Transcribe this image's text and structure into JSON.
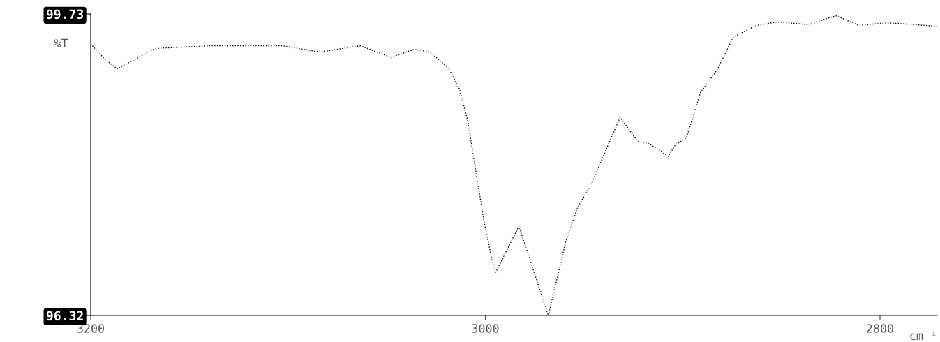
{
  "chart_data": {
    "type": "line",
    "ylabel": "%T",
    "xlabel": "cm⁻¹",
    "xlim": [
      3200,
      2771
    ],
    "xticks": [
      3200,
      3000,
      2800
    ],
    "ylim": [
      96.32,
      99.73
    ],
    "yticks": [
      96.32,
      99.73
    ],
    "grid": false,
    "marker": "none",
    "line_style": "dotted",
    "series": [
      {
        "color": "#000000",
        "x": [
          3200,
          3192.9,
          3186.5,
          3167.4,
          3139.5,
          3102.7,
          3083.9,
          3063.4,
          3047.8,
          3036.1,
          3028.0,
          3018.4,
          3013.1,
          3008.8,
          3004.9,
          3000.7,
          2996.5,
          2994.7,
          2983.0,
          2968.1,
          2959.3,
          2953.3,
          2946.2,
          2939.1,
          2931.7,
          2922.8,
          2916.8,
          2907.3,
          2903.7,
          2898.1,
          2891.0,
          2882.5,
          2874.3,
          2862.7,
          2852.0,
          2836.5,
          2822.3,
          2810.6,
          2796.5,
          2782.3,
          2771
        ],
        "values": [
          99.39,
          99.22,
          99.11,
          99.34,
          99.37,
          99.37,
          99.3,
          99.37,
          99.24,
          99.33,
          99.3,
          99.11,
          98.88,
          98.51,
          97.96,
          97.39,
          96.93,
          96.81,
          97.33,
          96.32,
          97.15,
          97.54,
          97.81,
          98.18,
          98.56,
          98.29,
          98.26,
          98.12,
          98.25,
          98.33,
          98.84,
          99.1,
          99.47,
          99.6,
          99.64,
          99.61,
          99.71,
          99.6,
          99.63,
          99.61,
          99.59
        ]
      }
    ]
  }
}
